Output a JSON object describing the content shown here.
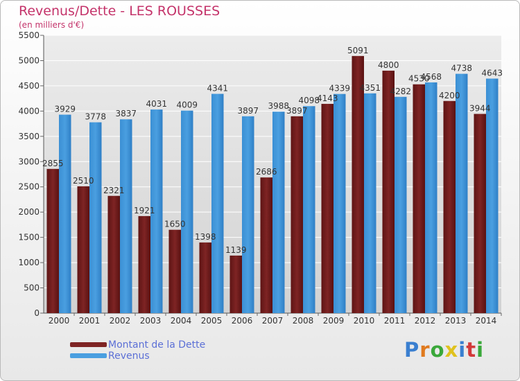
{
  "title": "Revenus/Dette - LES ROUSSES",
  "subtitle": "(en milliers d'€)",
  "logo": {
    "letters": [
      "P",
      "r",
      "o",
      "x",
      "i",
      "t",
      "i"
    ]
  },
  "colors": {
    "dette": "#7e2424",
    "revenus": "#4a9fe0",
    "title": "#c4336a",
    "legend_text": "#5b6fd6",
    "logo": [
      "#3a7fd0",
      "#e07a1e",
      "#3aa83a",
      "#e0c21e",
      "#3a7fd0",
      "#d23a3a",
      "#3aa83a"
    ]
  },
  "chart_data": {
    "type": "bar",
    "categories": [
      "2000",
      "2001",
      "2002",
      "2003",
      "2004",
      "2005",
      "2006",
      "2007",
      "2008",
      "2009",
      "2010",
      "2011",
      "2012",
      "2013",
      "2014"
    ],
    "series": [
      {
        "name": "Montant de la Dette",
        "values": [
          2855,
          2510,
          2321,
          1921,
          1650,
          1398,
          1139,
          2686,
          3897,
          4143,
          5091,
          4800,
          4530,
          4200,
          3944
        ]
      },
      {
        "name": "Revenus",
        "values": [
          3929,
          3778,
          3837,
          4031,
          4009,
          4341,
          3897,
          3988,
          4098,
          4339,
          4351,
          4282,
          4568,
          4738,
          4643
        ]
      }
    ],
    "ylim": [
      0,
      5500
    ],
    "yticks": [
      0,
      500,
      1000,
      1500,
      2000,
      2500,
      3000,
      3500,
      4000,
      4500,
      5000,
      5500
    ],
    "grid": true,
    "legend": "bottom-left"
  }
}
